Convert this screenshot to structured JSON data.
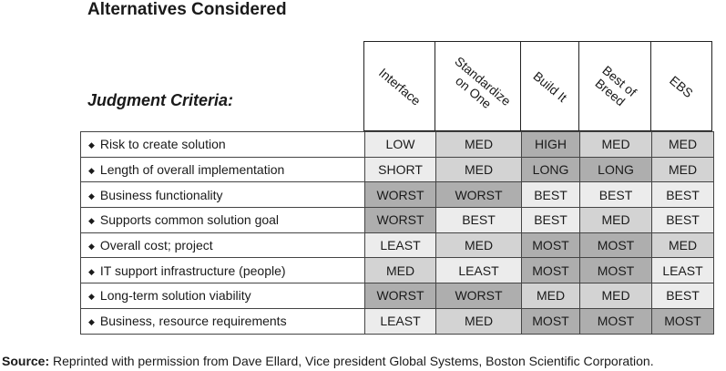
{
  "title": "Alternatives Considered",
  "subtitle": "Judgment Criteria:",
  "alternatives": [
    {
      "lines": [
        "Interface"
      ]
    },
    {
      "lines": [
        "Standardize",
        "on One"
      ]
    },
    {
      "lines": [
        "Build It"
      ]
    },
    {
      "lines": [
        "Best of",
        "Breed"
      ]
    },
    {
      "lines": [
        "EBS"
      ]
    }
  ],
  "rows": [
    {
      "criterion": "Risk to create solution",
      "values": [
        "LOW",
        "MED",
        "HIGH",
        "MED",
        "MED"
      ],
      "shades": [
        "l",
        "m",
        "d",
        "m",
        "m"
      ]
    },
    {
      "criterion": "Length of overall implementation",
      "values": [
        "SHORT",
        "MED",
        "LONG",
        "LONG",
        "MED"
      ],
      "shades": [
        "l",
        "m",
        "d",
        "d",
        "m"
      ]
    },
    {
      "criterion": "Business functionality",
      "values": [
        "WORST",
        "WORST",
        "BEST",
        "BEST",
        "BEST"
      ],
      "shades": [
        "d",
        "d",
        "l",
        "l",
        "l"
      ]
    },
    {
      "criterion": "Supports common solution goal",
      "values": [
        "WORST",
        "BEST",
        "BEST",
        "MED",
        "BEST"
      ],
      "shades": [
        "d",
        "l",
        "l",
        "m",
        "l"
      ]
    },
    {
      "criterion": "Overall cost; project",
      "values": [
        "LEAST",
        "MED",
        "MOST",
        "MOST",
        "MED"
      ],
      "shades": [
        "l",
        "m",
        "d",
        "d",
        "m"
      ]
    },
    {
      "criterion": "IT support infrastructure (people)",
      "values": [
        "MED",
        "LEAST",
        "MOST",
        "MOST",
        "LEAST"
      ],
      "shades": [
        "m",
        "l",
        "d",
        "d",
        "l"
      ]
    },
    {
      "criterion": "Long-term solution viability",
      "values": [
        "WORST",
        "WORST",
        "MED",
        "MED",
        "BEST"
      ],
      "shades": [
        "d",
        "d",
        "m",
        "m",
        "l"
      ]
    },
    {
      "criterion": "Business, resource requirements",
      "values": [
        "LEAST",
        "MED",
        "MOST",
        "MOST",
        "MOST"
      ],
      "shades": [
        "l",
        "m",
        "d",
        "d",
        "d"
      ]
    }
  ],
  "source": {
    "label": "Source:",
    "text": " Reprinted with permission from Dave Ellard, Vice president Global Systems, Boston Scientific Corporation."
  }
}
